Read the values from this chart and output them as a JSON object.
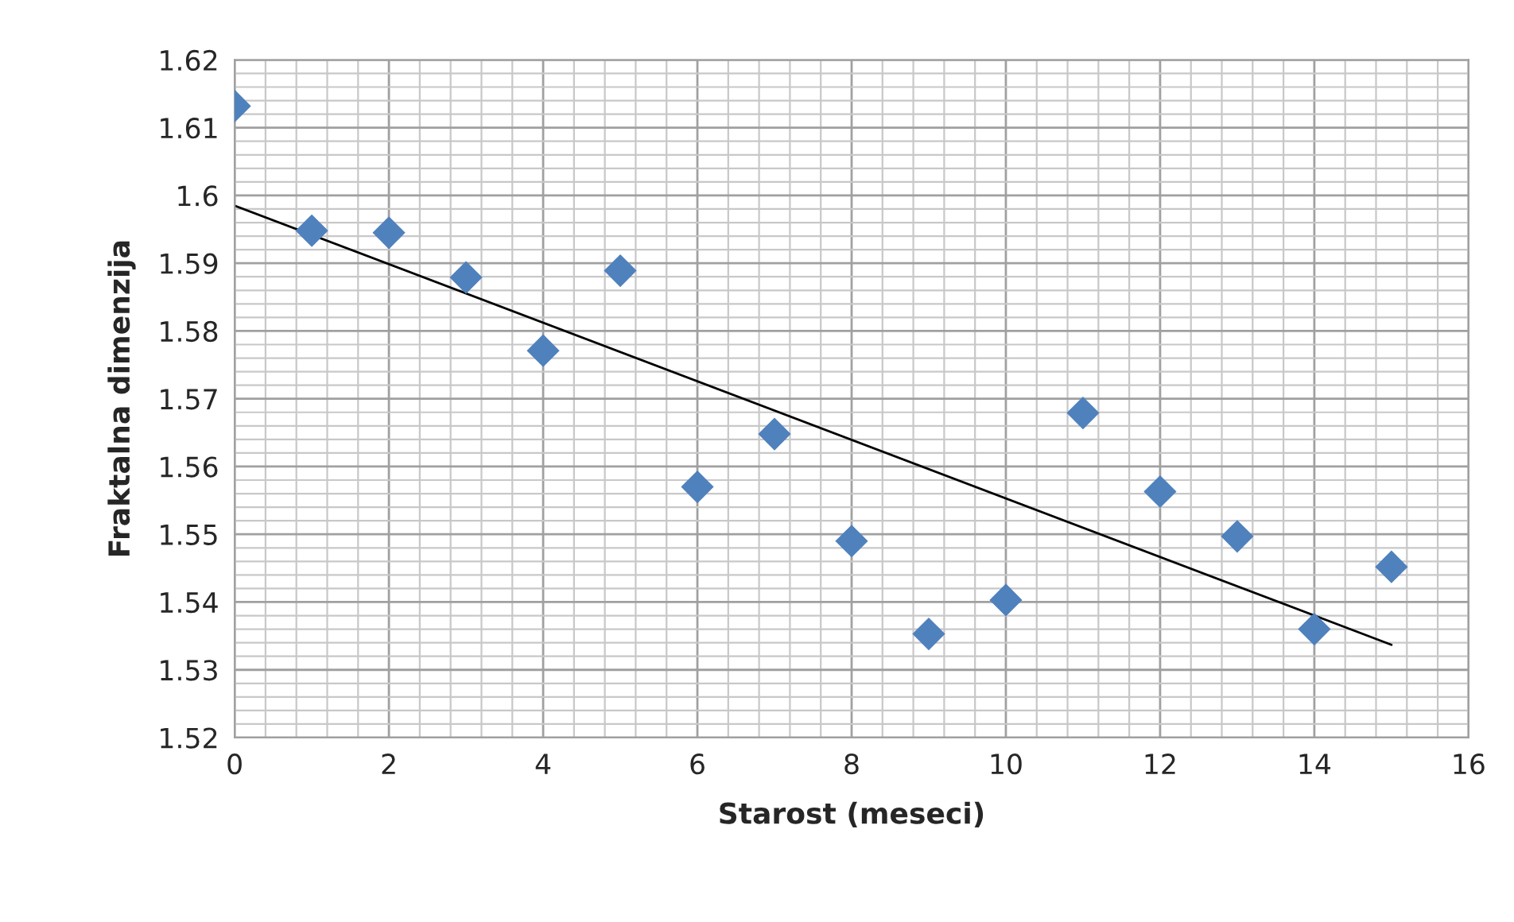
{
  "chart_data": {
    "type": "scatter",
    "xlabel": "Starost (meseci)",
    "ylabel": "Fraktalna dimenzija",
    "x": [
      0,
      1,
      2,
      3,
      4,
      5,
      6,
      7,
      8,
      9,
      10,
      11,
      12,
      13,
      14,
      15
    ],
    "series": [
      {
        "color": "#4f81bd",
        "marker": "diamond",
        "values": [
          1.6132,
          1.5948,
          1.5945,
          1.5879,
          1.5771,
          1.5889,
          1.557,
          1.5648,
          1.549,
          1.5353,
          1.5403,
          1.5679,
          1.5563,
          1.5497,
          1.536,
          1.5452
        ]
      },
      {
        "type": "line",
        "color": "#000000",
        "marker": "none",
        "line_style": "solid",
        "x": [
          0,
          15
        ],
        "values": [
          1.5985,
          1.5337
        ]
      }
    ],
    "xlim": [
      0,
      16
    ],
    "xticks": [
      0,
      2,
      4,
      6,
      8,
      10,
      12,
      14,
      16
    ],
    "ylim": [
      1.52,
      1.62
    ],
    "yticks": [
      {
        "value": 1.52,
        "label": "1.52"
      },
      {
        "value": 1.53,
        "label": "1.53"
      },
      {
        "value": 1.54,
        "label": "1.54"
      },
      {
        "value": 1.55,
        "label": "1.55"
      },
      {
        "value": 1.56,
        "label": "1.56"
      },
      {
        "value": 1.57,
        "label": "1.57"
      },
      {
        "value": 1.58,
        "label": "1.58"
      },
      {
        "value": 1.59,
        "label": "1.59"
      },
      {
        "value": 1.6,
        "label": "1.6"
      },
      {
        "value": 1.61,
        "label": "1.61"
      },
      {
        "value": 1.62,
        "label": "1.62"
      }
    ],
    "grid": true
  }
}
